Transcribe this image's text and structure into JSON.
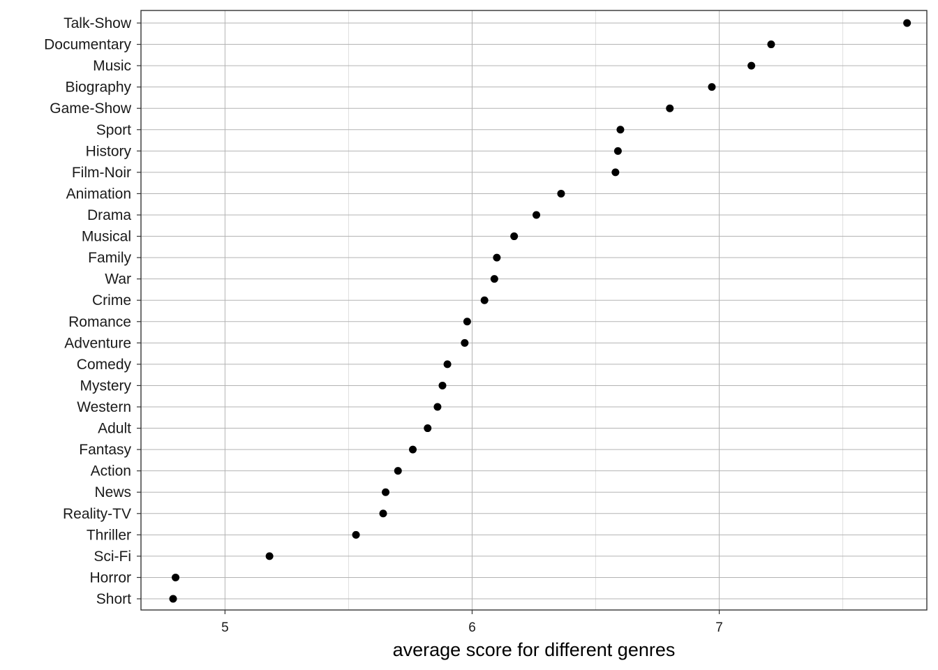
{
  "chart_data": {
    "type": "scatter",
    "title": "",
    "xlabel": "average score for different genres",
    "ylabel": "",
    "xlim": [
      4.66,
      7.84
    ],
    "x_ticks": [
      5,
      6,
      7
    ],
    "grid": true,
    "legend": "none",
    "point_color": "#000000",
    "grid_major_color": "#b3b3b3",
    "grid_minor_color": "#dcdcdc",
    "categories": [
      "Talk-Show",
      "Documentary",
      "Music",
      "Biography",
      "Game-Show",
      "Sport",
      "History",
      "Film-Noir",
      "Animation",
      "Drama",
      "Musical",
      "Family",
      "War",
      "Crime",
      "Romance",
      "Adventure",
      "Comedy",
      "Mystery",
      "Western",
      "Adult",
      "Fantasy",
      "Action",
      "News",
      "Reality-TV",
      "Thriller",
      "Sci-Fi",
      "Horror",
      "Short"
    ],
    "values": [
      7.76,
      7.21,
      7.13,
      6.97,
      6.8,
      6.6,
      6.59,
      6.58,
      6.36,
      6.26,
      6.17,
      6.1,
      6.09,
      6.05,
      5.98,
      5.97,
      5.9,
      5.88,
      5.86,
      5.82,
      5.76,
      5.7,
      5.65,
      5.64,
      5.53,
      5.18,
      4.8,
      4.79
    ]
  }
}
